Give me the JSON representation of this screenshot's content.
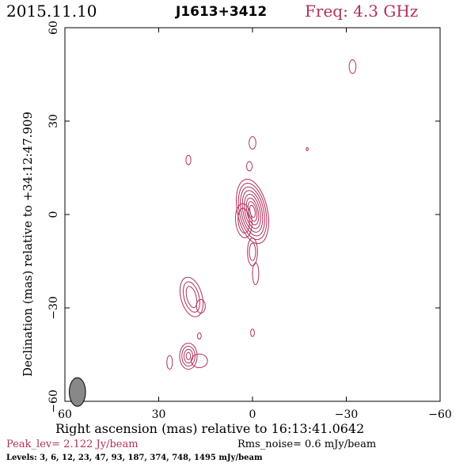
{
  "header": {
    "date": "2015.11.10",
    "source": "J1613+3412",
    "freq": "Freq: 4.3 GHz"
  },
  "chart_data": {
    "type": "contour",
    "title": "J1613+3412",
    "xlabel": "Right ascension (mas) relative to 16:13:41.0642",
    "ylabel": "Declination (mas) relative to +34:12:47.909",
    "xlim": [
      60,
      -60
    ],
    "ylim": [
      -60,
      60
    ],
    "xticks": [
      60,
      30,
      0,
      -30,
      -60
    ],
    "yticks": [
      -60,
      -30,
      0,
      30,
      60
    ],
    "xtick_labels": [
      "60",
      "30",
      "0",
      "−30",
      "−60"
    ],
    "ytick_labels": [
      "−60",
      "−30",
      "0",
      "30",
      "60"
    ],
    "contour_color": "#b0305a",
    "beam": {
      "x": 56,
      "y": -57,
      "bmaj": 4.6,
      "bmin": 2.6,
      "pa": 0,
      "color": "#888888"
    },
    "components": [
      {
        "name": "core",
        "x": 0,
        "y": 1,
        "levels": [
          {
            "rx": 4.8,
            "ry": 10.5,
            "angle": -12
          },
          {
            "rx": 4.2,
            "ry": 9.2,
            "angle": -12
          },
          {
            "rx": 3.6,
            "ry": 8.0,
            "angle": -12
          },
          {
            "rx": 3.0,
            "ry": 6.8,
            "angle": -12
          },
          {
            "rx": 2.4,
            "ry": 5.6,
            "angle": -12
          },
          {
            "rx": 1.8,
            "ry": 4.4,
            "angle": -12
          },
          {
            "rx": 1.3,
            "ry": 3.2,
            "angle": -12
          },
          {
            "rx": 0.8,
            "ry": 2.0,
            "angle": -12
          }
        ]
      },
      {
        "name": "core-east-lobe",
        "x": 2.8,
        "y": -2,
        "levels": [
          {
            "rx": 2.6,
            "ry": 5.5,
            "angle": -5
          },
          {
            "rx": 1.8,
            "ry": 4.0,
            "angle": -5
          }
        ]
      },
      {
        "name": "jet-south",
        "x": 0,
        "y": -12,
        "levels": [
          {
            "rx": 1.6,
            "ry": 4.5,
            "angle": 0
          },
          {
            "rx": 1.0,
            "ry": 2.8,
            "angle": 0
          }
        ]
      },
      {
        "name": "jet-south-tail",
        "x": -1,
        "y": -19,
        "levels": [
          {
            "rx": 1.0,
            "ry": 3.5,
            "angle": 0
          }
        ]
      },
      {
        "name": "knot-n1",
        "x": 0,
        "y": 23,
        "levels": [
          {
            "rx": 1.1,
            "ry": 2.0,
            "angle": 0
          }
        ]
      },
      {
        "name": "knot-n2",
        "x": 1.0,
        "y": 15.5,
        "levels": [
          {
            "rx": 0.9,
            "ry": 1.5,
            "angle": 0
          }
        ]
      },
      {
        "name": "knot-nw",
        "x": -17.5,
        "y": 21,
        "levels": [
          {
            "rx": 0.3,
            "ry": 0.5,
            "angle": 0
          }
        ]
      },
      {
        "name": "knot-far-nw",
        "x": -32,
        "y": 47.5,
        "levels": [
          {
            "rx": 1.1,
            "ry": 2.2,
            "angle": 0
          }
        ]
      },
      {
        "name": "knot-ne",
        "x": 20.5,
        "y": 17.5,
        "levels": [
          {
            "rx": 0.8,
            "ry": 1.5,
            "angle": 0
          }
        ]
      },
      {
        "name": "knot-s-small",
        "x": 0,
        "y": -38,
        "levels": [
          {
            "rx": 0.6,
            "ry": 1.2,
            "angle": 0
          }
        ]
      },
      {
        "name": "sw-blob-upper",
        "x": 19.5,
        "y": -26.5,
        "levels": [
          {
            "rx": 3.4,
            "ry": 6.5,
            "angle": -15
          },
          {
            "rx": 2.4,
            "ry": 5.0,
            "angle": -15
          },
          {
            "rx": 1.5,
            "ry": 3.5,
            "angle": -15
          }
        ]
      },
      {
        "name": "sw-blob-upper-tail",
        "x": 16.5,
        "y": -29.5,
        "levels": [
          {
            "rx": 1.4,
            "ry": 2.2,
            "angle": 0
          }
        ]
      },
      {
        "name": "sw-dot",
        "x": 17,
        "y": -39,
        "levels": [
          {
            "rx": 0.6,
            "ry": 1.0,
            "angle": 0
          }
        ]
      },
      {
        "name": "sw-blob-lower",
        "x": 20.5,
        "y": -45.5,
        "levels": [
          {
            "rx": 2.8,
            "ry": 4.2,
            "angle": 0
          },
          {
            "rx": 2.1,
            "ry": 3.2,
            "angle": 0
          },
          {
            "rx": 1.4,
            "ry": 2.2,
            "angle": 0
          },
          {
            "rx": 0.7,
            "ry": 1.2,
            "angle": 0
          }
        ]
      },
      {
        "name": "sw-blob-lower-ext",
        "x": 17,
        "y": -47,
        "levels": [
          {
            "rx": 2.6,
            "ry": 2.2,
            "angle": 0
          }
        ]
      },
      {
        "name": "sw-knot-far",
        "x": 26.5,
        "y": -47.5,
        "levels": [
          {
            "rx": 0.9,
            "ry": 2.2,
            "angle": 0
          }
        ]
      }
    ]
  },
  "footer": {
    "peak": "Peak_lev=  2.122 Jy/beam",
    "rms": "Rms_noise=  0.6 mJy/beam",
    "levels": "Levels:   3,   6,  12,  23,  47,  93, 187, 374, 748, 1495 mJy/beam"
  }
}
